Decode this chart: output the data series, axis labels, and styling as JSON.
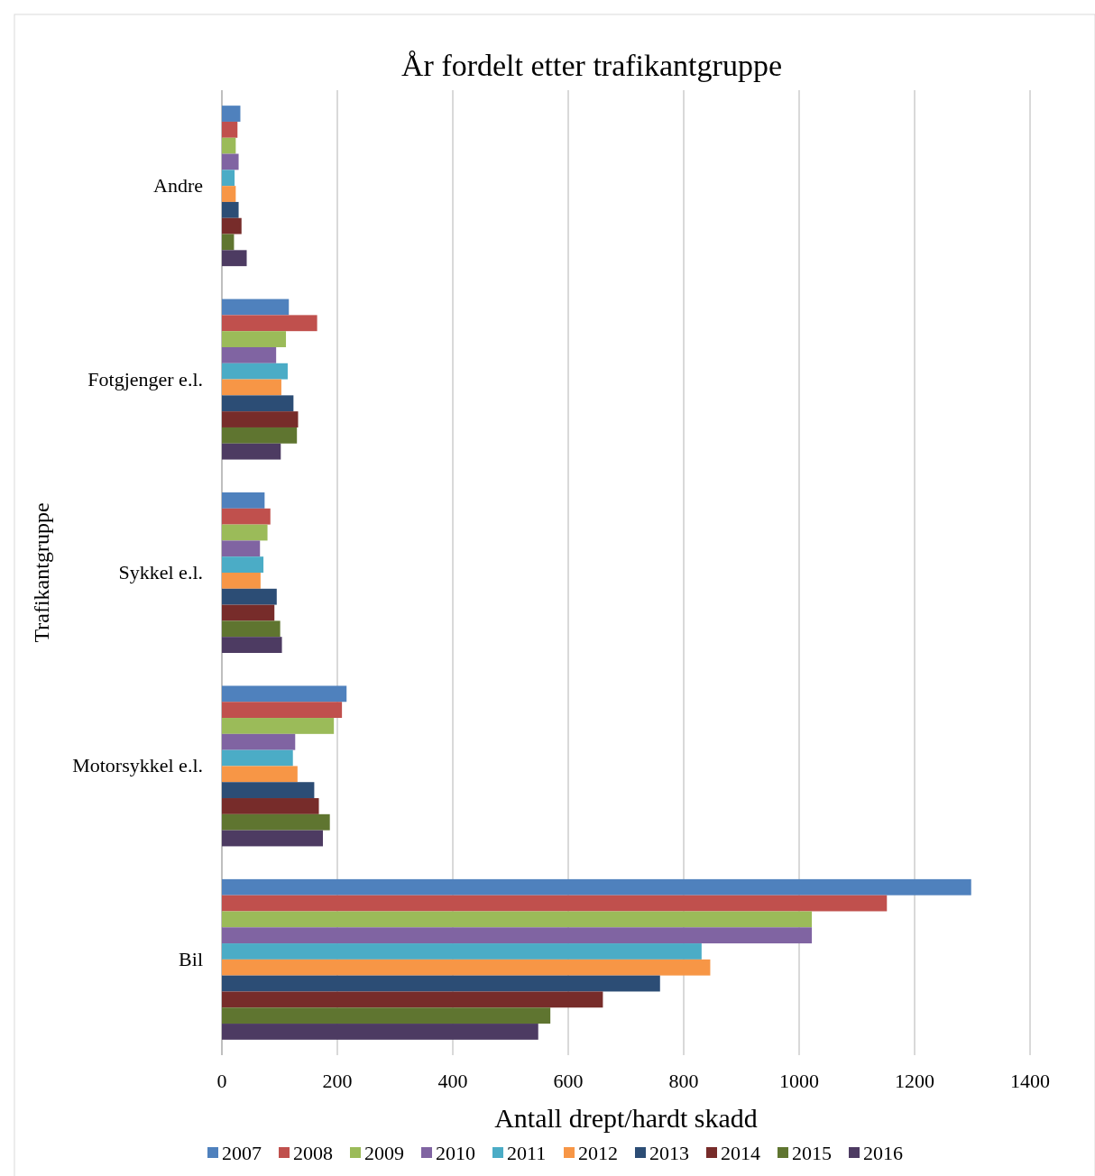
{
  "chart_data": {
    "type": "bar",
    "orientation": "horizontal",
    "title": "År fordelt etter trafikantgruppe",
    "xlabel": "Antall drept/hardt skadd",
    "ylabel": "Trafikantgruppe",
    "categories": [
      "Andre",
      "Fotgjenger e.l.",
      "Sykkel e.l.",
      "Motorsykkel e.l.",
      "Bil"
    ],
    "xlim": [
      0,
      1400
    ],
    "xticks": [
      0,
      200,
      400,
      600,
      800,
      1000,
      1200,
      1400
    ],
    "grid": "x",
    "legend": "bottom",
    "series": [
      {
        "name": "2007",
        "color": "#4f81bd",
        "values": [
          32,
          116,
          74,
          216,
          1298
        ]
      },
      {
        "name": "2008",
        "color": "#c0504d",
        "values": [
          27,
          165,
          84,
          208,
          1152
        ]
      },
      {
        "name": "2009",
        "color": "#9bbb59",
        "values": [
          24,
          111,
          79,
          194,
          1022
        ]
      },
      {
        "name": "2010",
        "color": "#8064a2",
        "values": [
          29,
          94,
          66,
          127,
          1022
        ]
      },
      {
        "name": "2011",
        "color": "#4bacc6",
        "values": [
          22,
          114,
          72,
          123,
          831
        ]
      },
      {
        "name": "2012",
        "color": "#f79646",
        "values": [
          24,
          103,
          67,
          131,
          846
        ]
      },
      {
        "name": "2013",
        "color": "#2c4d75",
        "values": [
          29,
          124,
          95,
          160,
          759
        ]
      },
      {
        "name": "2014",
        "color": "#772c2a",
        "values": [
          34,
          132,
          91,
          168,
          660
        ]
      },
      {
        "name": "2015",
        "color": "#5f7530",
        "values": [
          21,
          130,
          101,
          187,
          569
        ]
      },
      {
        "name": "2016",
        "color": "#4d3b62",
        "values": [
          43,
          102,
          104,
          175,
          548
        ]
      }
    ]
  }
}
